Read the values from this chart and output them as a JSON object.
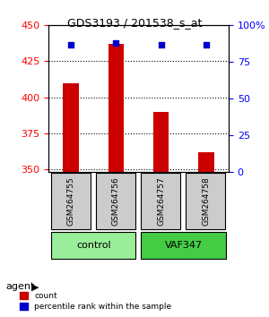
{
  "title": "GDS3193 / 201538_s_at",
  "samples": [
    "GSM264755",
    "GSM264756",
    "GSM264757",
    "GSM264758"
  ],
  "counts": [
    410,
    437,
    390,
    362
  ],
  "percentile_ranks": [
    87,
    88,
    87,
    87
  ],
  "groups": [
    "control",
    "control",
    "VAF347",
    "VAF347"
  ],
  "ylim_left": [
    348,
    450
  ],
  "ylim_right": [
    0,
    100
  ],
  "yticks_left": [
    350,
    375,
    400,
    425,
    450
  ],
  "yticks_right": [
    0,
    25,
    50,
    75,
    100
  ],
  "ytick_labels_right": [
    "0",
    "25",
    "50",
    "75",
    "100%"
  ],
  "bar_color": "#cc0000",
  "dot_color": "#0000cc",
  "grid_color": "#000000",
  "bg_plot": "#ffffff",
  "bg_sample_box": "#cccccc",
  "bg_control": "#99ee99",
  "bg_vaf": "#44cc44",
  "agent_label": "agent",
  "legend_count": "count",
  "legend_pct": "percentile rank within the sample",
  "bar_width": 0.35
}
